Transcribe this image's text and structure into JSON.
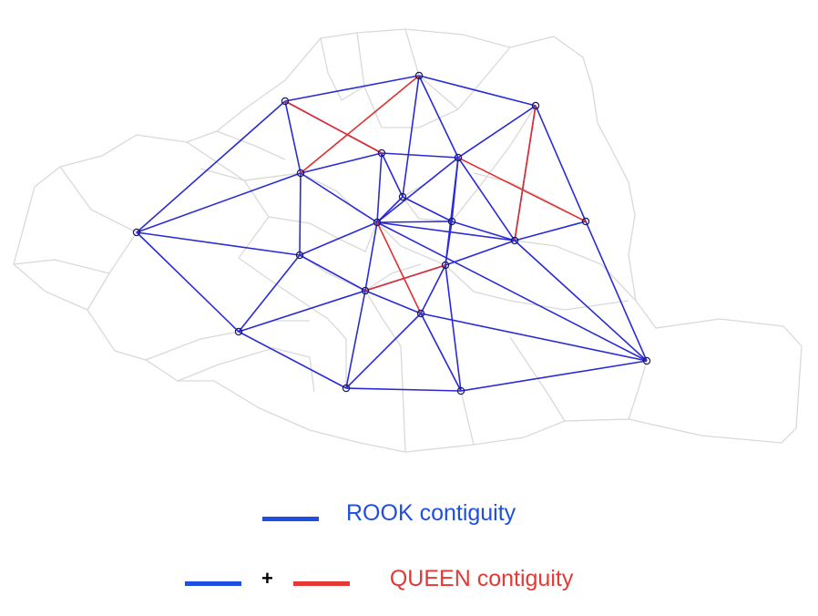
{
  "colors": {
    "rook": "#2b2bd6",
    "queen": "#e03030",
    "boundary": "#d9d9d9",
    "node_stroke": "#1a1a55",
    "legend_rook": "#1f4fe0",
    "legend_queen": "#e53935",
    "background": "#ffffff"
  },
  "legend": {
    "rook_label": "ROOK contiguity",
    "plus": "+",
    "queen_label": "QUEEN contiguity"
  },
  "graph": {
    "nodes": [
      {
        "id": "n1"
      },
      {
        "id": "n2"
      },
      {
        "id": "n3"
      },
      {
        "id": "n4"
      },
      {
        "id": "n5"
      },
      {
        "id": "n6"
      },
      {
        "id": "n7"
      },
      {
        "id": "n8"
      },
      {
        "id": "n9"
      },
      {
        "id": "n10"
      },
      {
        "id": "n11"
      },
      {
        "id": "n12"
      },
      {
        "id": "n13"
      },
      {
        "id": "n14"
      },
      {
        "id": "n15"
      },
      {
        "id": "n16"
      },
      {
        "id": "n17"
      },
      {
        "id": "n18"
      },
      {
        "id": "n19"
      },
      {
        "id": "n20"
      }
    ],
    "rook_edges": [
      [
        "n1",
        "n2"
      ],
      [
        "n1",
        "n3"
      ],
      [
        "n1",
        "n5"
      ],
      [
        "n1",
        "n11"
      ],
      [
        "n1",
        "n14"
      ],
      [
        "n2",
        "n5"
      ],
      [
        "n2",
        "n6"
      ],
      [
        "n2",
        "n4"
      ],
      [
        "n3",
        "n5"
      ],
      [
        "n3",
        "n6"
      ],
      [
        "n3",
        "n9"
      ],
      [
        "n3",
        "n10"
      ],
      [
        "n4",
        "n6"
      ],
      [
        "n4",
        "n13"
      ],
      [
        "n5",
        "n6"
      ],
      [
        "n5",
        "n7"
      ],
      [
        "n5",
        "n11"
      ],
      [
        "n6",
        "n7"
      ],
      [
        "n6",
        "n12"
      ],
      [
        "n6",
        "n10"
      ],
      [
        "n7",
        "n8"
      ],
      [
        "n7",
        "n9"
      ],
      [
        "n8",
        "n9"
      ],
      [
        "n8",
        "n13"
      ],
      [
        "n8",
        "n12"
      ],
      [
        "n9",
        "n10"
      ],
      [
        "n9",
        "n12"
      ],
      [
        "n9",
        "n11"
      ],
      [
        "n9",
        "n14"
      ],
      [
        "n10",
        "n12"
      ],
      [
        "n10",
        "n13"
      ],
      [
        "n11",
        "n14"
      ],
      [
        "n11",
        "n15"
      ],
      [
        "n12",
        "n13"
      ],
      [
        "n12",
        "n15"
      ],
      [
        "n12",
        "n14"
      ],
      [
        "n12",
        "n16"
      ],
      [
        "n12",
        "n20"
      ],
      [
        "n13",
        "n17"
      ],
      [
        "n13",
        "n20"
      ],
      [
        "n14",
        "n15"
      ],
      [
        "n14",
        "n18"
      ],
      [
        "n15",
        "n16"
      ],
      [
        "n15",
        "n18"
      ],
      [
        "n16",
        "n20"
      ],
      [
        "n16",
        "n18"
      ],
      [
        "n16",
        "n19"
      ],
      [
        "n17",
        "n20"
      ],
      [
        "n18",
        "n19"
      ],
      [
        "n19",
        "n20"
      ]
    ],
    "queen_edges": [
      [
        "n2",
        "n7"
      ],
      [
        "n5",
        "n3"
      ],
      [
        "n6",
        "n17"
      ],
      [
        "n4",
        "n13"
      ],
      [
        "n9",
        "n16"
      ],
      [
        "n12",
        "n15"
      ]
    ]
  }
}
